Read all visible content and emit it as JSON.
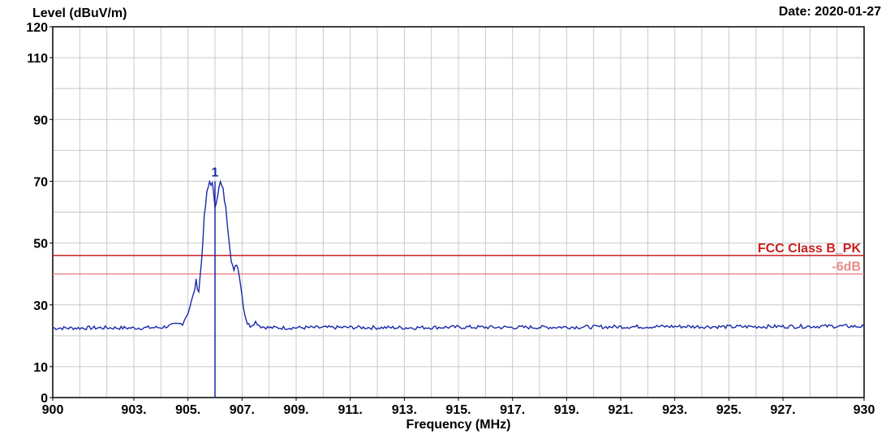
{
  "header": {
    "ylabel": "Level (dBuV/m)",
    "date": "Date: 2020-01-27"
  },
  "chart_data": {
    "type": "line",
    "title": "",
    "xlabel": "Frequency (MHz)",
    "ylabel": "Level (dBuV/m)",
    "xlim": [
      900,
      930
    ],
    "ylim": [
      0,
      120
    ],
    "x_ticks": [
      {
        "value": 900,
        "label": "900"
      },
      {
        "value": 903,
        "label": "903."
      },
      {
        "value": 905,
        "label": "905."
      },
      {
        "value": 907,
        "label": "907."
      },
      {
        "value": 909,
        "label": "909."
      },
      {
        "value": 911,
        "label": "911."
      },
      {
        "value": 913,
        "label": "913."
      },
      {
        "value": 915,
        "label": "915."
      },
      {
        "value": 917,
        "label": "917."
      },
      {
        "value": 919,
        "label": "919."
      },
      {
        "value": 921,
        "label": "921."
      },
      {
        "value": 923,
        "label": "923."
      },
      {
        "value": 925,
        "label": "925."
      },
      {
        "value": 927,
        "label": "927."
      },
      {
        "value": 930,
        "label": "930"
      }
    ],
    "y_ticks": [
      0,
      10,
      30,
      50,
      70,
      90,
      110,
      120
    ],
    "grid": true,
    "limit_lines": [
      {
        "name": "FCC Class B_PK",
        "y": 46,
        "color": "#c81e1e"
      },
      {
        "name": "-6dB",
        "y": 40,
        "color": "#e88a8a"
      }
    ],
    "series": [
      {
        "color": "#1a2aa8",
        "x": [
          900.0,
          901.0,
          902.0,
          903.0,
          904.0,
          904.8,
          905.0,
          905.2,
          905.3,
          905.4,
          905.5,
          905.6,
          905.7,
          905.8,
          905.9,
          906.0,
          906.1,
          906.2,
          906.3,
          906.4,
          906.5,
          906.6,
          906.7,
          906.8,
          906.9,
          907.0,
          907.1,
          907.2,
          907.3,
          907.5,
          907.7,
          908.0,
          909.0,
          911.0,
          913.0,
          915.0,
          917.0,
          919.0,
          921.0,
          923.0,
          925.0,
          927.0,
          929.0,
          930.0
        ],
        "y": [
          22.5,
          22.5,
          22.6,
          22.5,
          22.7,
          24.0,
          27.5,
          33.0,
          37.5,
          34.5,
          44.0,
          58.0,
          66.0,
          70.0,
          69.0,
          62.0,
          66.0,
          69.5,
          67.0,
          61.0,
          53.0,
          45.0,
          40.5,
          43.5,
          40.0,
          33.0,
          27.0,
          24.0,
          23.2,
          24.5,
          23.0,
          22.6,
          22.6,
          22.7,
          22.6,
          22.8,
          22.7,
          22.8,
          22.9,
          23.0,
          22.9,
          23.0,
          23.1,
          23.0
        ]
      }
    ],
    "markers": [
      {
        "label": "1",
        "x": 906.0,
        "y": 70
      }
    ]
  }
}
